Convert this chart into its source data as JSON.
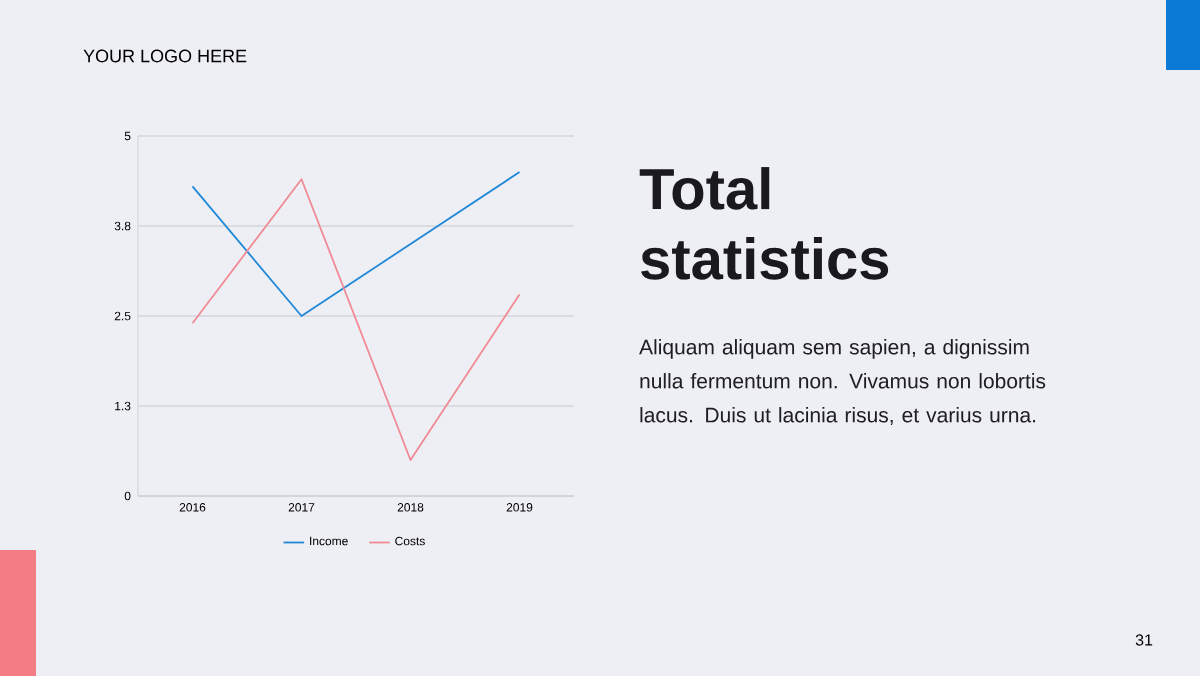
{
  "chart_data": {
    "type": "line",
    "title": "Total statistics",
    "annotations": [
      "YOUR LOGO HERE",
      "Aliquam aliquam sem sapien, a dignissim nulla fermentum non. Vivamus non lobortis lacus. Duis ut lacinia risus, et varius urna.",
      "31"
    ],
    "categories": [
      "2016",
      "2017",
      "2018",
      "2019"
    ],
    "series": [
      {
        "name": "Income",
        "color": "#1f88d8",
        "values": [
          4.3,
          2.5,
          3.5,
          4.5
        ]
      },
      {
        "name": "Costs",
        "color": "#f08a94",
        "values": [
          2.4,
          4.4,
          0.5,
          2.8
        ]
      }
    ],
    "ylim": [
      0,
      5
    ],
    "yticks": [
      0,
      {
        "value": 1.25,
        "label": "1.3"
      },
      2.5,
      {
        "value": 3.75,
        "label": "3.8"
      },
      5
    ],
    "grid": "y",
    "legend": "bottom",
    "marker": "none",
    "line_style": "solid"
  }
}
